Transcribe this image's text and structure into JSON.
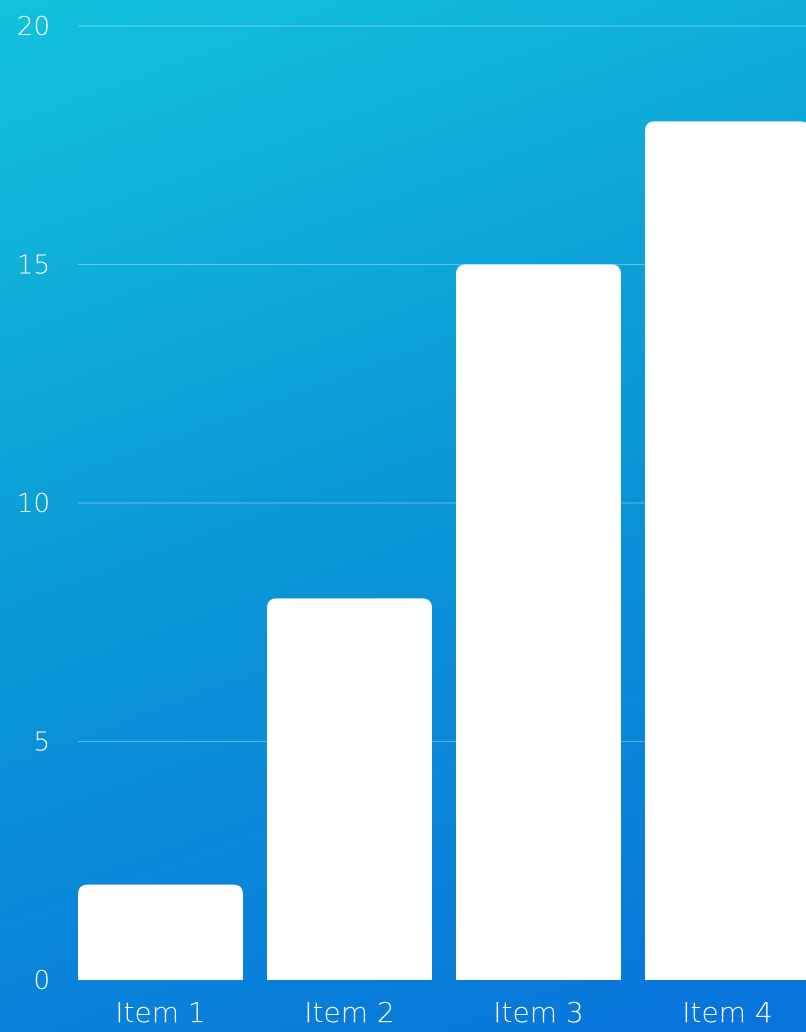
{
  "chart_data": {
    "type": "bar",
    "title": "",
    "xlabel": "",
    "ylabel": "",
    "categories": [
      "Item 1",
      "Item 2",
      "Item 3",
      "Item 4"
    ],
    "values": [
      2,
      8,
      15,
      18
    ],
    "ylim": [
      0,
      20
    ],
    "yticks": [
      "0",
      "5",
      "10",
      "15",
      "20"
    ],
    "grid": true,
    "legend": "none",
    "colors": {
      "bar": "#ffffff",
      "background_start": "#12c2dc",
      "background_end": "#0872dc",
      "text": "#ffffff"
    }
  }
}
